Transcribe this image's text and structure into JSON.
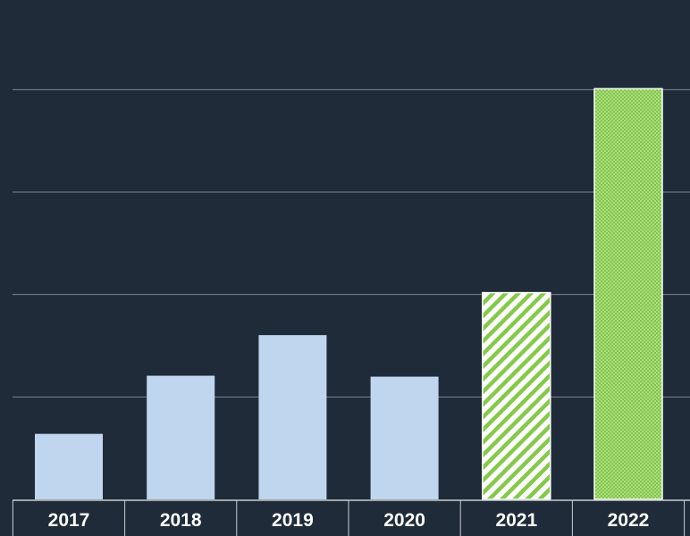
{
  "chart_data": {
    "type": "bar",
    "categories": [
      "2017",
      "2018",
      "2019",
      "2020",
      "2021",
      "2022"
    ],
    "values": [
      0.71,
      1.34,
      1.78,
      1.33,
      2.24,
      4.45
    ],
    "ylim": [
      0,
      4.86
    ],
    "grid": true,
    "colors": {
      "background": "#202b39",
      "bar": "#c0d6ee",
      "highlight": "#85c94a",
      "gridline": "#7d8590",
      "axis": "#c7ccd3",
      "text": "#ffffff"
    },
    "styles": [
      "solid",
      "solid",
      "solid",
      "solid",
      "diagonal-hatch",
      "dotted"
    ]
  }
}
